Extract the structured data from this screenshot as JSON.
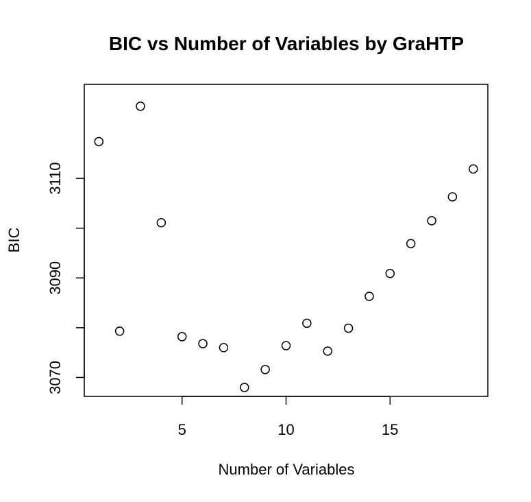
{
  "chart_data": {
    "type": "scatter",
    "title": "BIC vs Number of Variables by GraHTP",
    "xlabel": "Number of Variables",
    "ylabel": "BIC",
    "xlim": [
      0.3,
      19.7
    ],
    "ylim": [
      3066.2,
      3128.9
    ],
    "x_ticks": [
      5,
      10,
      15
    ],
    "y_ticks": [
      3070,
      3080,
      3090,
      3100,
      3110
    ],
    "y_tick_labels_shown": [
      3070,
      3090,
      3110
    ],
    "grid": false,
    "legend": "none",
    "point_style": "open-circle",
    "x": [
      1,
      2,
      3,
      4,
      5,
      6,
      7,
      8,
      9,
      10,
      11,
      12,
      13,
      14,
      15,
      16,
      17,
      18,
      19
    ],
    "y": [
      3117.4,
      3079.3,
      3124.5,
      3101.1,
      3078.2,
      3076.8,
      3076.0,
      3068.0,
      3071.6,
      3076.4,
      3080.9,
      3075.3,
      3079.9,
      3086.3,
      3090.9,
      3096.9,
      3101.5,
      3106.3,
      3111.9
    ]
  }
}
